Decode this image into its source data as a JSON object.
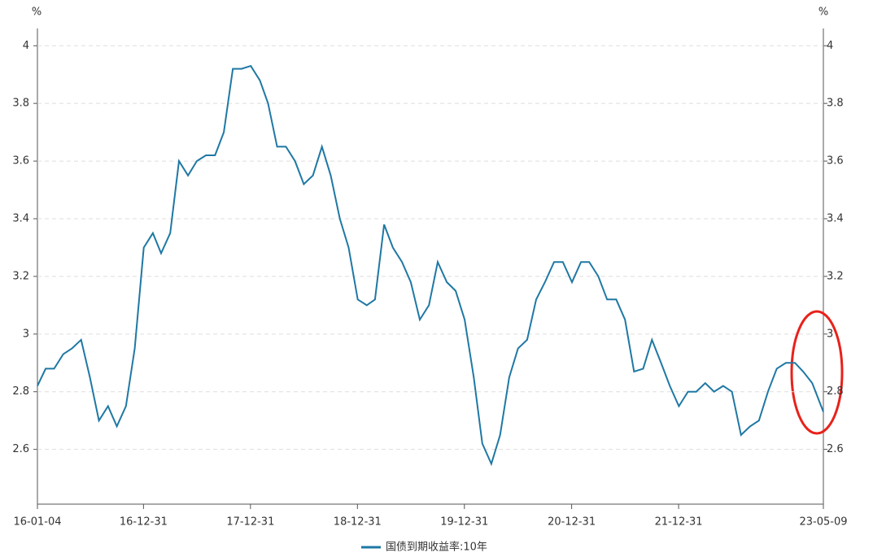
{
  "chart_data": {
    "type": "line",
    "y_unit": "%",
    "y2_unit": "%",
    "x": [
      "16-01-04",
      "16-02-01",
      "16-03-01",
      "16-04-01",
      "16-05-01",
      "16-06-01",
      "16-07-01",
      "16-08-01",
      "16-09-01",
      "16-10-01",
      "16-11-01",
      "16-12-01",
      "17-01-01",
      "17-02-01",
      "17-03-01",
      "17-04-01",
      "17-05-01",
      "17-06-01",
      "17-07-01",
      "17-08-01",
      "17-09-01",
      "17-10-01",
      "17-11-01",
      "17-12-01",
      "18-01-01",
      "18-02-01",
      "18-03-01",
      "18-04-01",
      "18-05-01",
      "18-06-01",
      "18-07-01",
      "18-08-01",
      "18-09-01",
      "18-10-01",
      "18-11-01",
      "18-12-01",
      "19-01-01",
      "19-02-01",
      "19-03-01",
      "19-04-01",
      "19-05-01",
      "19-06-01",
      "19-07-01",
      "19-08-01",
      "19-09-01",
      "19-10-01",
      "19-11-01",
      "19-12-01",
      "20-01-01",
      "20-02-01",
      "20-03-01",
      "20-04-01",
      "20-05-01",
      "20-06-01",
      "20-07-01",
      "20-08-01",
      "20-09-01",
      "20-10-01",
      "20-11-01",
      "20-12-01",
      "21-01-01",
      "21-02-01",
      "21-03-01",
      "21-04-01",
      "21-05-01",
      "21-06-01",
      "21-07-01",
      "21-08-01",
      "21-09-01",
      "21-10-01",
      "21-11-01",
      "21-12-01",
      "22-01-01",
      "22-02-01",
      "22-03-01",
      "22-04-01",
      "22-05-01",
      "22-06-01",
      "22-07-01",
      "22-08-01",
      "22-09-01",
      "22-10-01",
      "22-11-01",
      "22-12-01",
      "23-01-01",
      "23-02-01",
      "23-03-01",
      "23-04-01",
      "23-05-09"
    ],
    "series": [
      {
        "name": "国债到期收益率:10年",
        "color": "#1f78a4",
        "values": [
          2.82,
          2.88,
          2.88,
          2.93,
          2.95,
          2.98,
          2.85,
          2.7,
          2.75,
          2.68,
          2.75,
          2.95,
          3.3,
          3.35,
          3.28,
          3.35,
          3.6,
          3.55,
          3.6,
          3.62,
          3.62,
          3.7,
          3.92,
          3.92,
          3.93,
          3.88,
          3.8,
          3.65,
          3.65,
          3.6,
          3.52,
          3.55,
          3.65,
          3.55,
          3.4,
          3.3,
          3.12,
          3.1,
          3.12,
          3.38,
          3.3,
          3.25,
          3.18,
          3.05,
          3.1,
          3.25,
          3.18,
          3.15,
          3.05,
          2.85,
          2.62,
          2.55,
          2.65,
          2.85,
          2.95,
          2.98,
          3.12,
          3.18,
          3.25,
          3.25,
          3.18,
          3.25,
          3.25,
          3.2,
          3.12,
          3.12,
          3.05,
          2.87,
          2.88,
          2.98,
          2.9,
          2.82,
          2.75,
          2.8,
          2.8,
          2.83,
          2.8,
          2.82,
          2.8,
          2.65,
          2.68,
          2.7,
          2.8,
          2.88,
          2.9,
          2.9,
          2.87,
          2.83,
          2.73
        ]
      }
    ],
    "xlim": [
      "16-01-04",
      "23-05-09"
    ],
    "xticks": [
      "16-01-04",
      "16-12-31",
      "17-12-31",
      "18-12-31",
      "19-12-31",
      "20-12-31",
      "21-12-31",
      "23-05-09"
    ],
    "ylim": [
      2.41,
      4.06
    ],
    "yticks": [
      2.6,
      2.8,
      3,
      3.2,
      3.4,
      3.6,
      3.8,
      4
    ],
    "y2lim": [
      2.41,
      4.06
    ],
    "y2ticks": [
      2.6,
      2.8,
      3,
      3.2,
      3.4,
      3.6,
      3.8,
      4
    ],
    "grid": true,
    "legend": "bottom"
  }
}
